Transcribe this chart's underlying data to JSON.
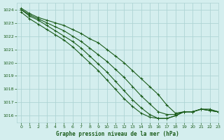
{
  "title": "Graphe pression niveau de la mer (hPa)",
  "bg_color": "#d4eeee",
  "grid_color": "#aed4d4",
  "line_color": "#1a5c1a",
  "xlim": [
    -0.5,
    23
  ],
  "ylim": [
    1015.5,
    1024.5
  ],
  "yticks": [
    1016,
    1017,
    1018,
    1019,
    1020,
    1021,
    1022,
    1023,
    1024
  ],
  "xticks": [
    0,
    1,
    2,
    3,
    4,
    5,
    6,
    7,
    8,
    9,
    10,
    11,
    12,
    13,
    14,
    15,
    16,
    17,
    18,
    19,
    20,
    21,
    22,
    23
  ],
  "series": [
    [
      1024.1,
      1023.7,
      1023.4,
      1023.2,
      1023.0,
      1022.8,
      1022.5,
      1022.2,
      1021.8,
      1021.5,
      1021.0,
      1020.5,
      1020.0,
      1019.4,
      1018.8,
      1018.2,
      1017.6,
      1016.8,
      1016.2,
      1016.3,
      1016.3,
      1016.5,
      1016.5,
      1016.3
    ],
    [
      1024.0,
      1023.6,
      1023.3,
      1023.0,
      1022.7,
      1022.4,
      1022.0,
      1021.6,
      1021.1,
      1020.6,
      1020.1,
      1019.5,
      1018.9,
      1018.2,
      1017.5,
      1016.9,
      1016.3,
      1016.1,
      1016.1,
      1016.3,
      1016.3,
      1016.5,
      1016.4,
      1016.3
    ],
    [
      1024.0,
      1023.5,
      1023.2,
      1022.8,
      1022.4,
      1022.0,
      1021.6,
      1021.1,
      1020.5,
      1019.9,
      1019.3,
      1018.6,
      1017.9,
      1017.2,
      1016.6,
      1016.1,
      1015.8,
      1015.8,
      1016.0,
      1016.3,
      1016.3,
      1016.5,
      1016.4,
      1016.3
    ],
    [
      1023.8,
      1023.3,
      1022.9,
      1022.5,
      1022.1,
      1021.7,
      1021.2,
      1020.6,
      1020.0,
      1019.4,
      1018.7,
      1018.0,
      1017.3,
      1016.7,
      1016.2,
      1015.9,
      1015.8,
      1015.8,
      1016.0,
      1016.3,
      1016.3,
      1016.5,
      1016.4,
      1016.3
    ]
  ]
}
